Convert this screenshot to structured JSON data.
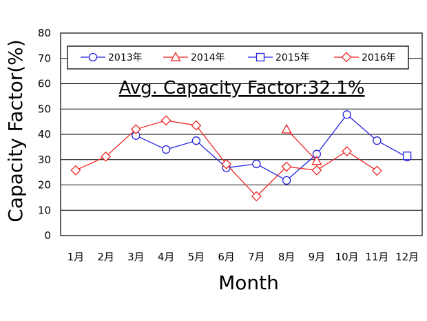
{
  "chart_data": {
    "type": "line",
    "xlabel": "Month",
    "ylabel": "Capacity Factor(%)",
    "annotation": "Avg. Capacity Factor:32.1%",
    "ylim": [
      0,
      80
    ],
    "yticks": [
      0,
      10,
      20,
      30,
      40,
      50,
      60,
      70,
      80
    ],
    "categories": [
      "1月",
      "2月",
      "3月",
      "4月",
      "5月",
      "6月",
      "7月",
      "8月",
      "9月",
      "10月",
      "11月",
      "12月"
    ],
    "grid": "horizontal",
    "legend_position": "top",
    "series": [
      {
        "name": "2013年",
        "color": "#2222dd",
        "marker": "circle",
        "values": [
          null,
          null,
          39.5,
          34,
          37.5,
          26.8,
          28.3,
          21.8,
          32.2,
          47.8,
          37.5,
          31
        ]
      },
      {
        "name": "2014年",
        "color": "#ee2222",
        "marker": "triangle",
        "values": [
          null,
          null,
          null,
          null,
          null,
          null,
          null,
          42,
          29.5,
          null,
          null,
          null
        ]
      },
      {
        "name": "2015年",
        "color": "#2222dd",
        "marker": "square",
        "values": [
          null,
          null,
          null,
          null,
          null,
          null,
          null,
          null,
          null,
          null,
          null,
          31.5
        ]
      },
      {
        "name": "2016年",
        "color": "#ee2222",
        "marker": "diamond",
        "values": [
          25.8,
          31.2,
          42,
          45.5,
          43.5,
          28.2,
          15.5,
          27.2,
          25.8,
          33.3,
          25.6,
          null
        ]
      }
    ]
  }
}
